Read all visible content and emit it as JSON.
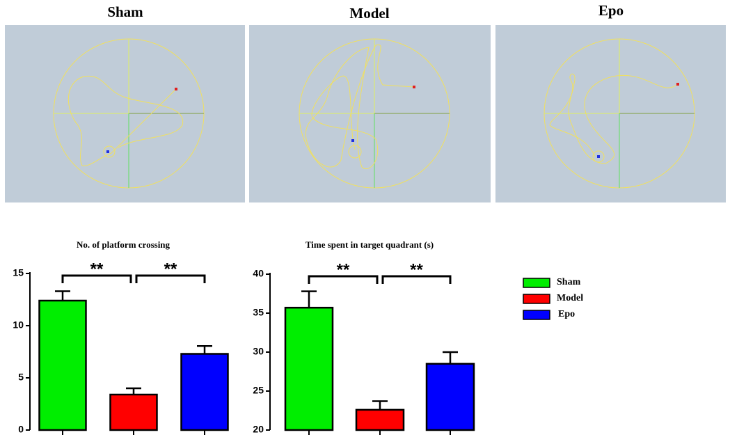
{
  "panels": [
    {
      "title": "Sham"
    },
    {
      "title": "Model"
    },
    {
      "title": "Epo"
    }
  ],
  "chart_data": [
    {
      "type": "bar",
      "title": "No. of platform crossing",
      "categories": [
        null
      ],
      "series": [
        {
          "name": "Sham",
          "color": "#00ee00",
          "values": [
            12.4
          ],
          "errors": [
            0.9
          ]
        },
        {
          "name": "Model",
          "color": "#ff0000",
          "values": [
            3.4
          ],
          "errors": [
            0.6
          ]
        },
        {
          "name": "Epo",
          "color": "#0000ff",
          "values": [
            7.3
          ],
          "errors": [
            0.75
          ]
        }
      ],
      "ylim": [
        0,
        15
      ],
      "yticks": [
        0,
        5,
        10,
        15
      ],
      "annotations": [
        {
          "text": "**"
        },
        {
          "text": "**"
        }
      ]
    },
    {
      "type": "bar",
      "title": "Time spent in target quadrant (s)",
      "categories": [
        null
      ],
      "series": [
        {
          "name": "Sham",
          "color": "#00ee00",
          "values": [
            35.7
          ],
          "errors": [
            2.1
          ]
        },
        {
          "name": "Model",
          "color": "#ff0000",
          "values": [
            22.6
          ],
          "errors": [
            1.1
          ]
        },
        {
          "name": "Epo",
          "color": "#0000ff",
          "values": [
            28.5
          ],
          "errors": [
            1.5
          ]
        }
      ],
      "ylim": [
        20,
        40
      ],
      "yticks": [
        20,
        25,
        30,
        35,
        40
      ],
      "annotations": [
        {
          "text": "**"
        },
        {
          "text": "**"
        }
      ]
    }
  ]
}
